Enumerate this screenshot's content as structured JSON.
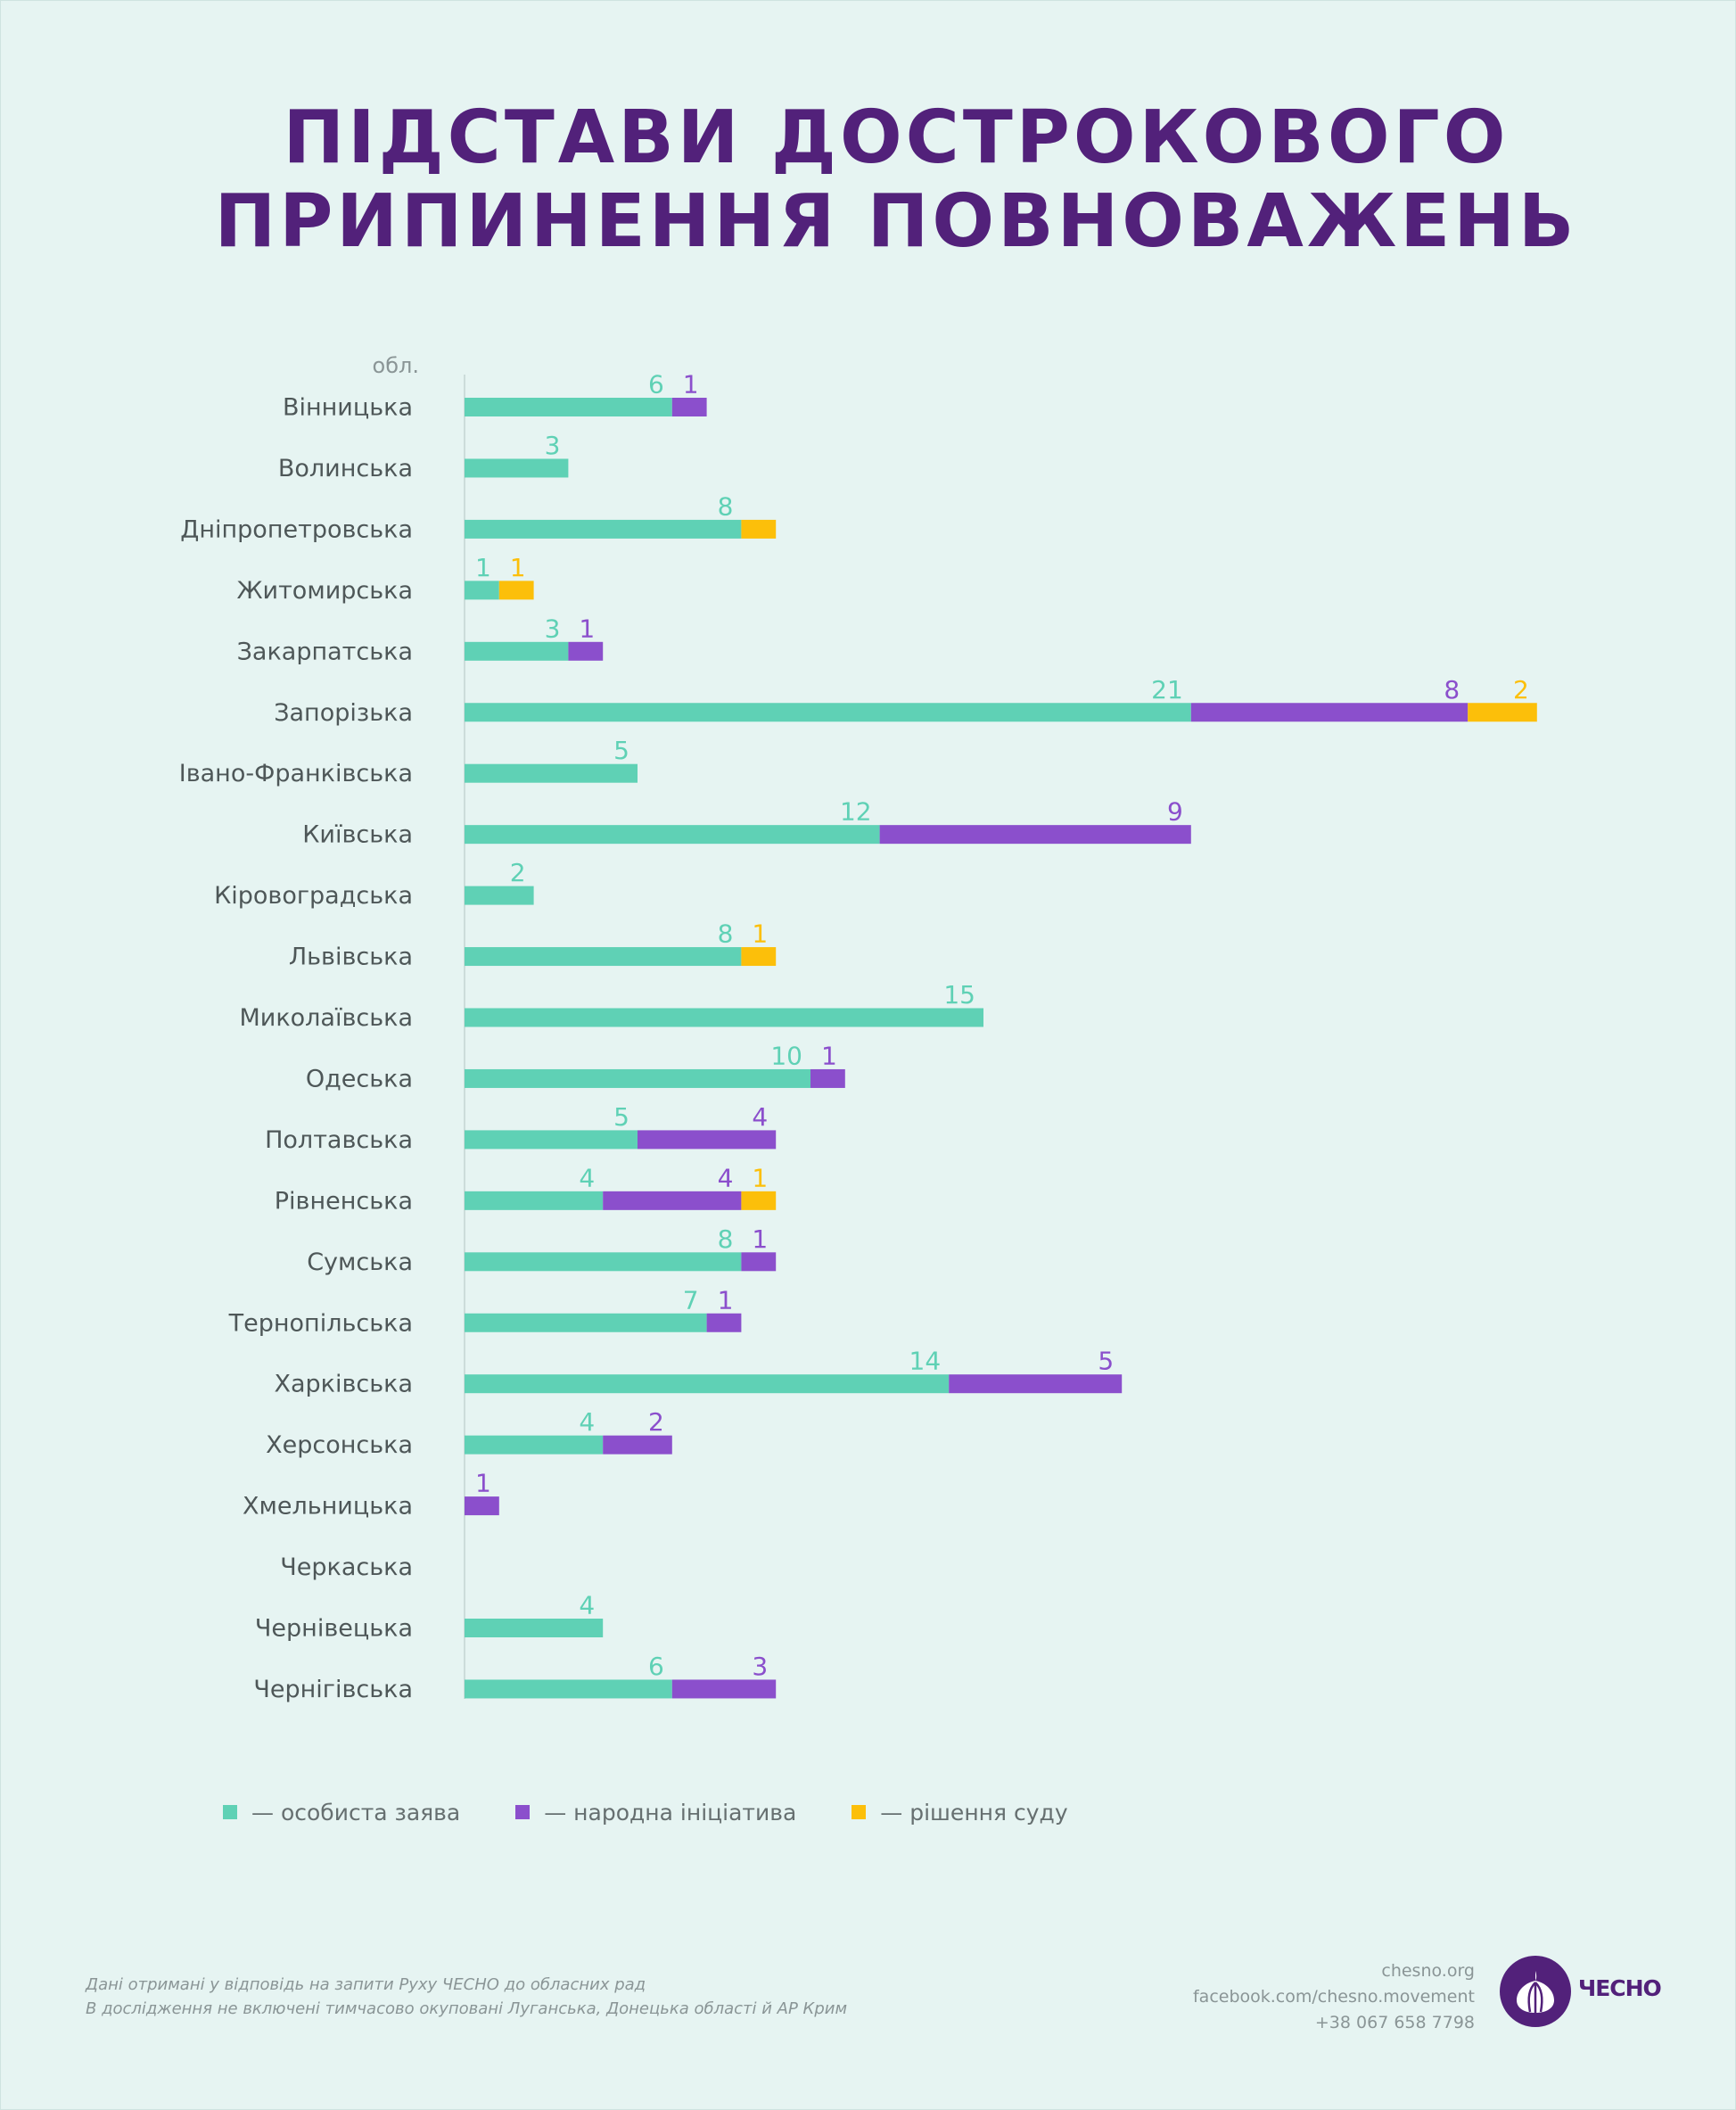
{
  "header": {
    "title_line1": "ПІДСТАВИ ДОСТРОКОВОГО",
    "title_line2": "ПРИПИНЕННЯ ПОВНОВАЖЕНЬ"
  },
  "colors": {
    "personal": "#5fd1b5",
    "people": "#8b4fcc",
    "court": "#fcbf0a",
    "title": "#52217a",
    "label": "#4e5758"
  },
  "chart_data": {
    "type": "bar",
    "orientation": "horizontal",
    "stacked": true,
    "axis_label": "обл.",
    "categories": [
      "Вінницька",
      "Волинська",
      "Дніпропетровська",
      "Житомирська",
      "Закарпатська",
      "Запорізька",
      "Івано-Франківська",
      "Київська",
      "Кіровоградська",
      "Львівська",
      "Миколаївська",
      "Одеська",
      "Полтавська",
      "Рівненська",
      "Сумська",
      "Тернопільська",
      "Харківська",
      "Херсонська",
      "Хмельницька",
      "Черкаська",
      "Чернівецька",
      "Чернігівська"
    ],
    "series": [
      {
        "name": "особиста заява",
        "key": "personal",
        "values": [
          6,
          3,
          8,
          1,
          3,
          21,
          5,
          12,
          2,
          8,
          15,
          10,
          5,
          4,
          8,
          7,
          14,
          4,
          0,
          0,
          4,
          6
        ]
      },
      {
        "name": "народна ініціатива",
        "key": "people",
        "values": [
          1,
          0,
          0,
          0,
          1,
          8,
          0,
          9,
          0,
          0,
          0,
          1,
          4,
          4,
          1,
          1,
          5,
          2,
          1,
          0,
          0,
          3
        ]
      },
      {
        "name": "рішення суду",
        "key": "court",
        "values": [
          0,
          0,
          1,
          1,
          0,
          2,
          0,
          0,
          0,
          1,
          0,
          0,
          0,
          1,
          0,
          0,
          0,
          0,
          0,
          0,
          0,
          0
        ]
      }
    ],
    "label_visibility": [
      [
        true,
        true,
        true,
        true,
        true,
        true,
        true,
        true,
        true,
        true,
        true,
        true,
        true,
        true,
        true,
        true,
        true,
        true,
        false,
        false,
        true,
        true
      ],
      [
        true,
        false,
        false,
        false,
        true,
        true,
        false,
        true,
        false,
        false,
        false,
        true,
        true,
        true,
        true,
        true,
        true,
        true,
        true,
        false,
        false,
        true
      ],
      [
        false,
        false,
        false,
        true,
        false,
        true,
        false,
        false,
        false,
        true,
        false,
        false,
        false,
        true,
        false,
        false,
        false,
        false,
        false,
        false,
        false,
        false
      ]
    ],
    "legend_position": "bottom",
    "grid": false
  },
  "legend": [
    {
      "label": "— особиста заява",
      "color": "#5fd1b5"
    },
    {
      "label": "— народна ініціатива",
      "color": "#8b4fcc"
    },
    {
      "label": "— рішення суду",
      "color": "#fcbf0a"
    }
  ],
  "footer": {
    "note_line1": "Дані отримані у відповідь на запити Руху ЧЕСНО до обласних рад",
    "note_line2": "В дослідження не включені тимчасово окуповані Луганська, Донецька області й АР Крим",
    "site": "chesno.org",
    "facebook": "facebook.com/chesno.movement",
    "phone": "+38 067 658 7798",
    "logo_text": "ЧЕСНО"
  }
}
